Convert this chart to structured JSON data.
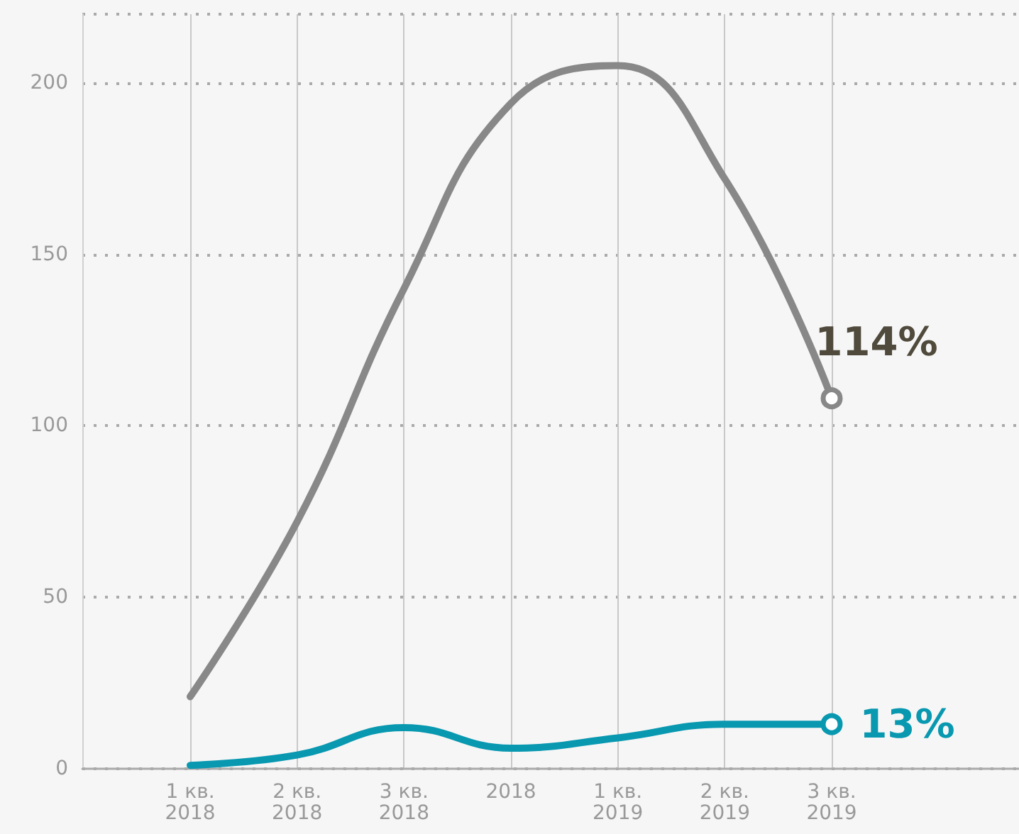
{
  "chart_data": {
    "type": "line",
    "categories": [
      "1 кв.\n2018",
      "2 кв.\n2018",
      "3 кв.\n2018",
      "2018",
      "1 кв.\n2019",
      "2 кв.\n2019",
      "3 кв.\n2019"
    ],
    "series": [
      {
        "color": "#888888",
        "values": [
          21,
          72,
          140,
          194,
          205,
          172,
          108
        ]
      },
      {
        "color": "#0898b0",
        "values": [
          1,
          4,
          12,
          6,
          9,
          13,
          13
        ],
        "value_labels": [
          null,
          null,
          null,
          null,
          null,
          null,
          "13%"
        ]
      }
    ],
    "annotations": [
      {
        "text": "114%",
        "x": "3 кв.\n2019",
        "y": 108
      }
    ],
    "ylim": [
      0,
      220
    ],
    "yticks": [
      0,
      50,
      100,
      150,
      200
    ],
    "grid": true
  }
}
